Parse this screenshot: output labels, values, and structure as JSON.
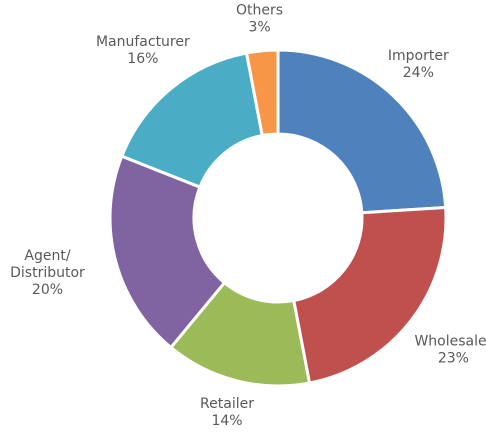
{
  "chart_data": {
    "type": "donut",
    "categories": [
      "Importer",
      "Wholesaler",
      "Retailer",
      "Agent/Distributor",
      "Manufacturer",
      "Others"
    ],
    "values": [
      24,
      23,
      14,
      20,
      16,
      3
    ],
    "value_labels": [
      "24%",
      "23%",
      "14%",
      "20%",
      "16%",
      "3%"
    ],
    "colors": [
      "#4f81bd",
      "#c0504d",
      "#9bbb59",
      "#8064a2",
      "#4bacc6",
      "#f79646"
    ]
  }
}
